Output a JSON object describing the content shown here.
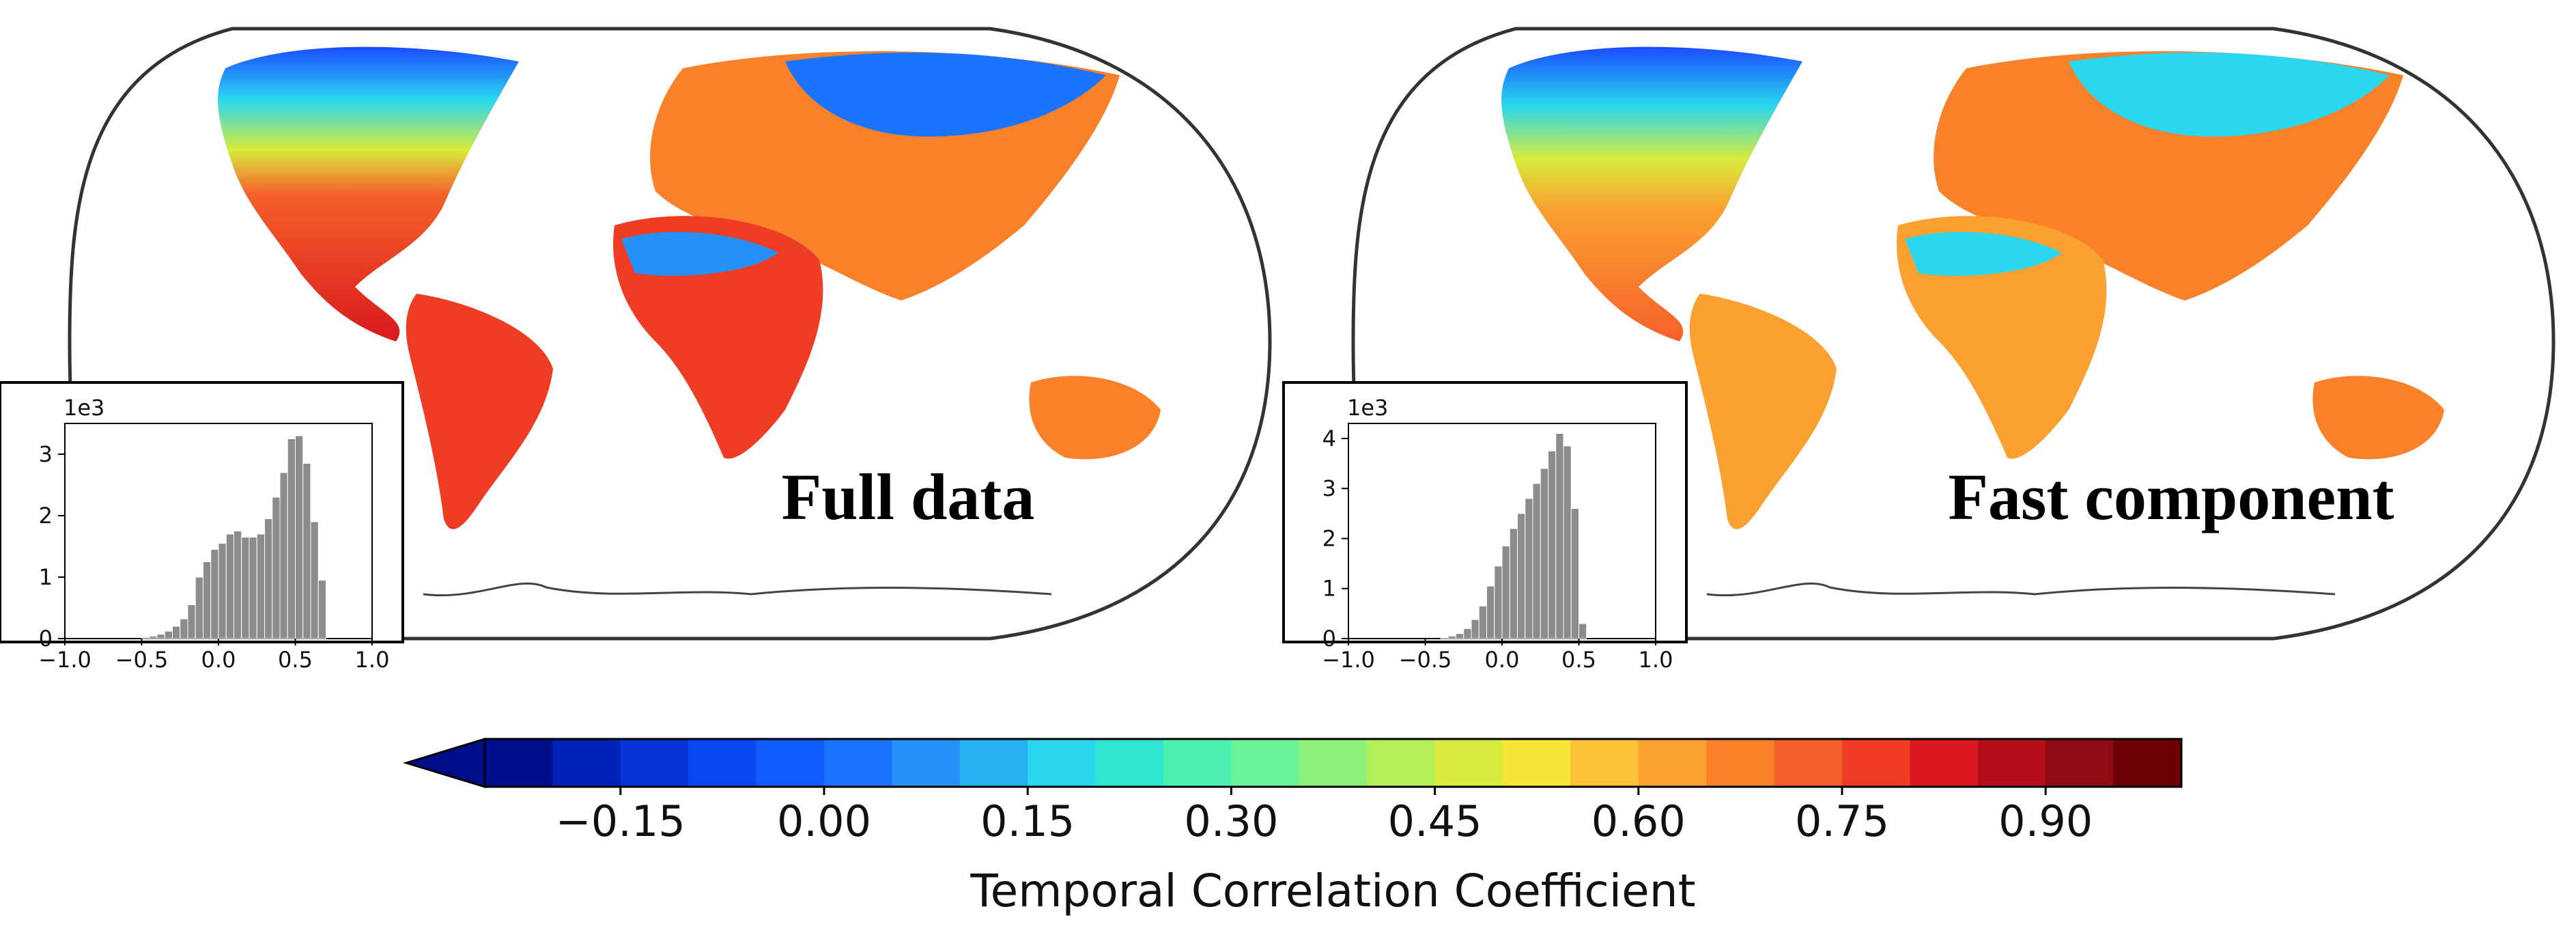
{
  "chart_data": [
    {
      "type": "histogram",
      "panel": "left",
      "title": "Full data",
      "description": "Global map of temporal correlation coefficient (full data) with inset histogram",
      "histogram": {
        "scale_label": "1e3",
        "xlim": [
          -1.0,
          1.0
        ],
        "ylim": [
          0,
          3.5
        ],
        "xticks": [
          "-1.0",
          "-0.5",
          "0.0",
          "0.5",
          "1.0"
        ],
        "yticks": [
          "0",
          "1",
          "2",
          "3"
        ],
        "bin_edges_start": -0.5,
        "bin_width": 0.05,
        "values": [
          0.02,
          0.04,
          0.07,
          0.12,
          0.2,
          0.32,
          0.55,
          1.0,
          1.25,
          1.45,
          1.55,
          1.7,
          1.75,
          1.65,
          1.65,
          1.7,
          1.95,
          2.3,
          2.7,
          3.25,
          3.3,
          2.85,
          1.9,
          0.95
        ]
      }
    },
    {
      "type": "histogram",
      "panel": "right",
      "title": "Fast component",
      "description": "Global map of temporal correlation coefficient (fast component) with inset histogram",
      "histogram": {
        "scale_label": "1e3",
        "xlim": [
          -1.0,
          1.0
        ],
        "ylim": [
          0,
          4.3
        ],
        "xticks": [
          "-1.0",
          "-0.5",
          "0.0",
          "0.5",
          "1.0"
        ],
        "yticks": [
          "0",
          "1",
          "2",
          "3",
          "4"
        ],
        "bin_edges_start": -0.4,
        "bin_width": 0.05,
        "values": [
          0.02,
          0.05,
          0.1,
          0.2,
          0.38,
          0.65,
          1.05,
          1.45,
          1.85,
          2.2,
          2.5,
          2.8,
          3.1,
          3.4,
          3.75,
          4.1,
          3.85,
          2.6,
          0.3
        ]
      }
    }
  ],
  "colorbar": {
    "label": "Temporal Correlation Coefficient",
    "ticks": [
      "−0.15",
      "0.00",
      "0.15",
      "0.30",
      "0.45",
      "0.60",
      "0.75",
      "0.90"
    ],
    "tick_values": [
      -0.15,
      0.0,
      0.15,
      0.3,
      0.45,
      0.6,
      0.75,
      0.9
    ],
    "min": -0.25,
    "max": 1.0,
    "extend": "min",
    "colors": [
      "#000d8a",
      "#0021b8",
      "#0533d6",
      "#0a47ef",
      "#0f5bff",
      "#1a74ff",
      "#2590f7",
      "#28b1f2",
      "#2ad7ef",
      "#2fe5cf",
      "#4ef0b2",
      "#6cf296",
      "#8ef27a",
      "#b5ee56",
      "#d8eb3c",
      "#f6e437",
      "#fbc137",
      "#fba131",
      "#f98129",
      "#f5602a",
      "#ef3d25",
      "#d9191e",
      "#b50e1b",
      "#8f0a13",
      "#6b0006"
    ]
  }
}
